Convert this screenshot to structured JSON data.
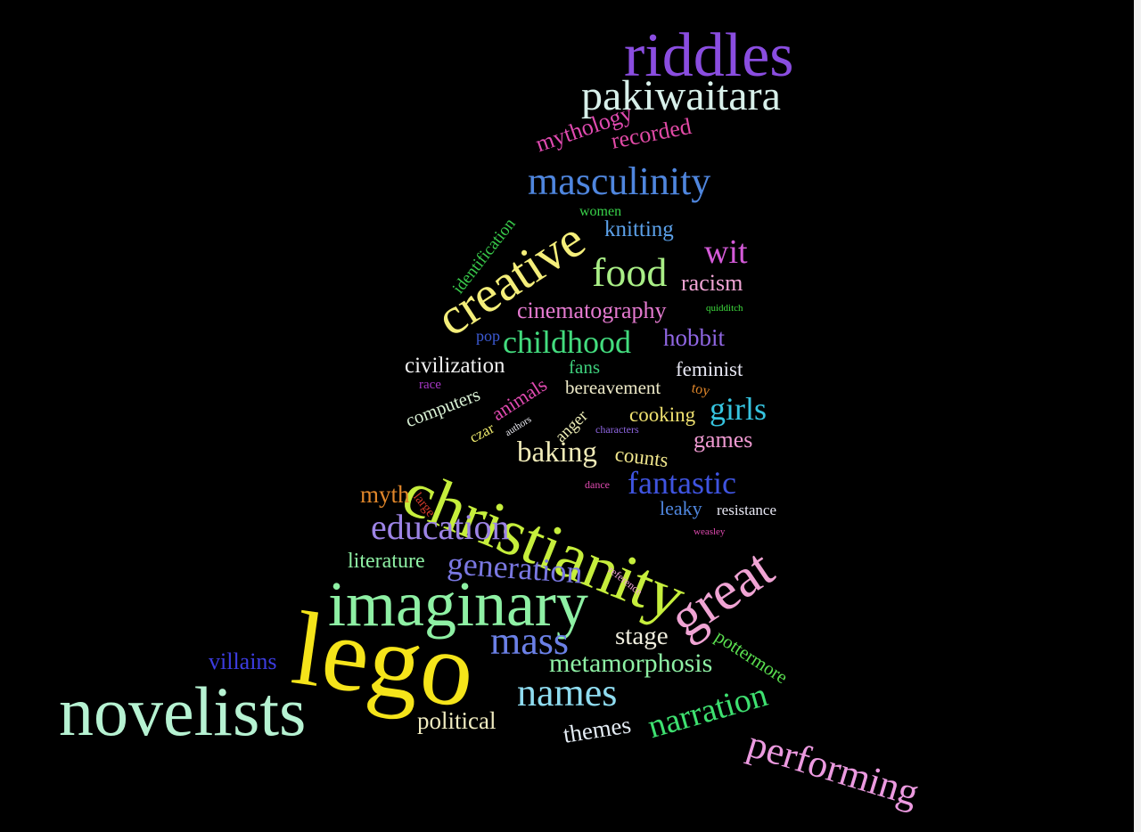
{
  "cloud": {
    "background": "#000000",
    "words": [
      {
        "text": "riddles",
        "color": "#8a4de0"
      },
      {
        "text": "pakiwaitara",
        "color": "#d8f0ea"
      },
      {
        "text": "mythology",
        "color": "#e04ab0"
      },
      {
        "text": "recorded",
        "color": "#e24aa6"
      },
      {
        "text": "masculinity",
        "color": "#4f86de"
      },
      {
        "text": "identification",
        "color": "#38c94a"
      },
      {
        "text": "women",
        "color": "#39d34a"
      },
      {
        "text": "knitting",
        "color": "#5ba0e8"
      },
      {
        "text": "creative",
        "color": "#f4ee7a"
      },
      {
        "text": "wit",
        "color": "#d45ad8"
      },
      {
        "text": "food",
        "color": "#a9ee86"
      },
      {
        "text": "racism",
        "color": "#f0a4d4"
      },
      {
        "text": "cinematography",
        "color": "#e57ad0"
      },
      {
        "text": "quidditch",
        "color": "#3ede3e"
      },
      {
        "text": "pop",
        "color": "#3c5ad4"
      },
      {
        "text": "childhood",
        "color": "#43dc7e"
      },
      {
        "text": "hobbit",
        "color": "#8f66e2"
      },
      {
        "text": "civilization",
        "color": "#f0f0f0"
      },
      {
        "text": "fans",
        "color": "#3ecf7c"
      },
      {
        "text": "feminist",
        "color": "#e8e8f4"
      },
      {
        "text": "race",
        "color": "#a838c8"
      },
      {
        "text": "animals",
        "color": "#e04ab0"
      },
      {
        "text": "bereavement",
        "color": "#eeeac8"
      },
      {
        "text": "toy",
        "color": "#e0862a"
      },
      {
        "text": "computers",
        "color": "#d8f0d4"
      },
      {
        "text": "anger",
        "color": "#eaeab4"
      },
      {
        "text": "cooking",
        "color": "#f0e270"
      },
      {
        "text": "girls",
        "color": "#36c4e0"
      },
      {
        "text": "czar",
        "color": "#f0ec6e"
      },
      {
        "text": "authors",
        "color": "#ededf4"
      },
      {
        "text": "characters",
        "color": "#8f66e2"
      },
      {
        "text": "games",
        "color": "#f09ad2"
      },
      {
        "text": "christianity",
        "color": "#c6ee3c"
      },
      {
        "text": "baking",
        "color": "#f0ebb8"
      },
      {
        "text": "counts",
        "color": "#f0e68c"
      },
      {
        "text": "fantastic",
        "color": "#3f54e0"
      },
      {
        "text": "dance",
        "color": "#e04ab0"
      },
      {
        "text": "myth",
        "color": "#e0862a"
      },
      {
        "text": "large",
        "color": "#cf3a2a"
      },
      {
        "text": "leaky",
        "color": "#4f86de"
      },
      {
        "text": "resistance",
        "color": "#e8e8f4"
      },
      {
        "text": "education",
        "color": "#9d84e6"
      },
      {
        "text": "weasley",
        "color": "#e04ab0"
      },
      {
        "text": "literature",
        "color": "#8ef0a4"
      },
      {
        "text": "generation",
        "color": "#7a78e2"
      },
      {
        "text": "reference",
        "color": "#f0a4d4"
      },
      {
        "text": "great",
        "color": "#f0a4d4"
      },
      {
        "text": "imaginary",
        "color": "#8ef0a4"
      },
      {
        "text": "pottermore",
        "color": "#5ae050"
      },
      {
        "text": "lego",
        "color": "#f5e41a"
      },
      {
        "text": "mass",
        "color": "#6b80e6"
      },
      {
        "text": "stage",
        "color": "#f0eede"
      },
      {
        "text": "villains",
        "color": "#3c3ce0"
      },
      {
        "text": "metamorphosis",
        "color": "#8ef0a4"
      },
      {
        "text": "novelists",
        "color": "#b6f2d2"
      },
      {
        "text": "names",
        "color": "#8fdcf0"
      },
      {
        "text": "narration",
        "color": "#3ee070"
      },
      {
        "text": "political",
        "color": "#f0ebc0"
      },
      {
        "text": "themes",
        "color": "#e4ecf4"
      },
      {
        "text": "performing",
        "color": "#ec9ae0"
      }
    ]
  }
}
